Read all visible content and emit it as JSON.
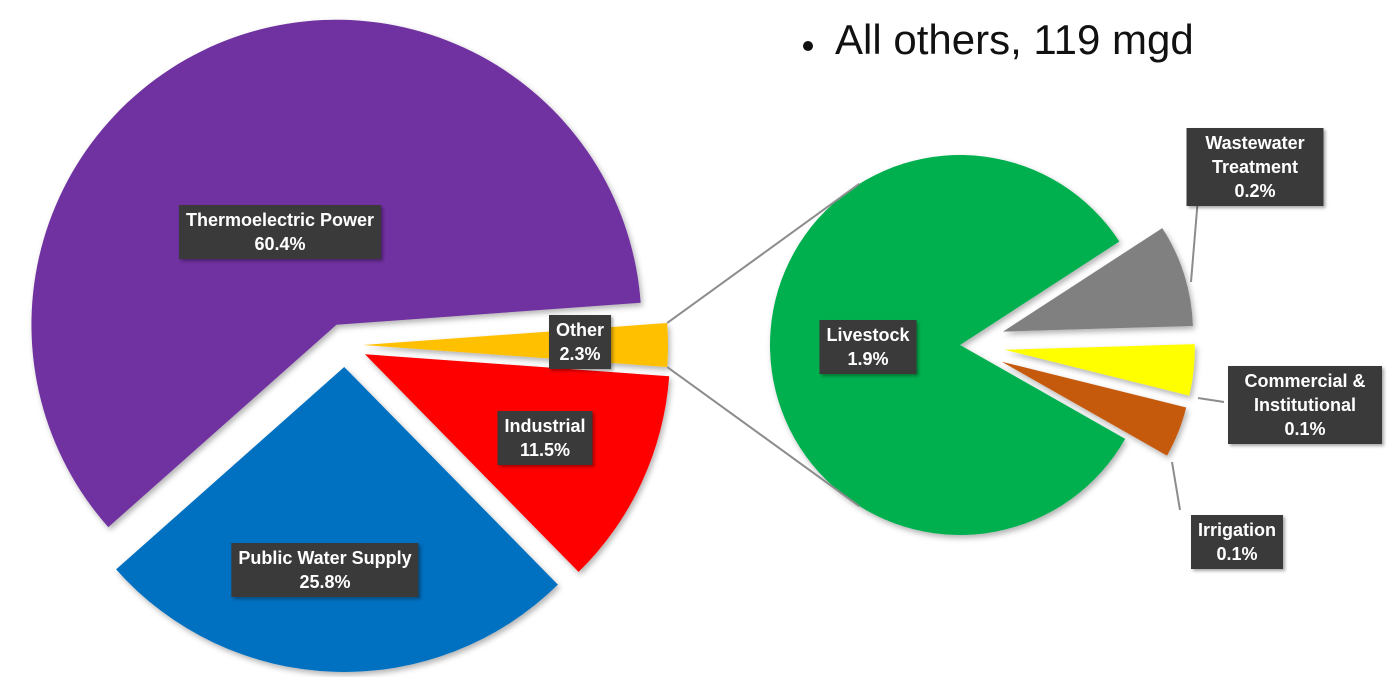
{
  "annotation": "All others, 119 mgd",
  "chart_data": [
    {
      "type": "pie",
      "categories": [
        "Other",
        "Industrial",
        "Public Water Supply",
        "Thermoelectric Power"
      ],
      "values": [
        2.3,
        11.5,
        25.8,
        60.4
      ],
      "value_labels": [
        "2.3%",
        "11.5%",
        "25.8%",
        "60.4%"
      ],
      "colors": [
        "#ffc000",
        "#ff0000",
        "#0070c0",
        "#7030a0"
      ]
    },
    {
      "type": "pie",
      "categories": [
        "Wastewater Treatment",
        "Commercial & Institutional",
        "Irrigation",
        "Livestock"
      ],
      "values": [
        0.2,
        0.1,
        0.1,
        1.9
      ],
      "value_labels": [
        "0.2%",
        "0.1%",
        "0.1%",
        "1.9%"
      ],
      "colors": [
        "#808080",
        "#ffff00",
        "#c55a11",
        "#00b050"
      ]
    }
  ]
}
